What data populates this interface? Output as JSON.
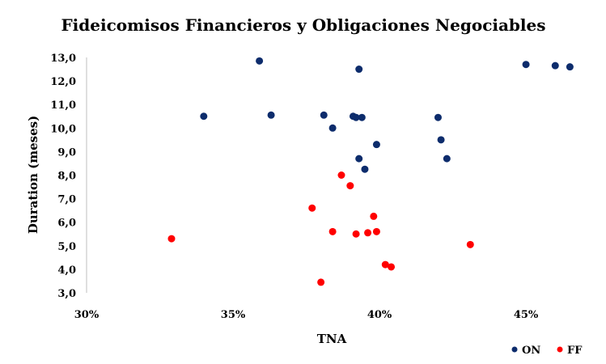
{
  "chart_data": {
    "type": "scatter",
    "title": "Fideicomisos Financieros y Obligaciones Negociables",
    "xlabel": "TNA",
    "ylabel": "Duration (meses)",
    "xlim": [
      0.3,
      0.466
    ],
    "ylim": [
      3.0,
      13.0
    ],
    "x_ticks": [
      {
        "value": 0.3,
        "label": "30%"
      },
      {
        "value": 0.35,
        "label": "35%"
      },
      {
        "value": 0.4,
        "label": "40%"
      },
      {
        "value": 0.45,
        "label": "45%"
      }
    ],
    "y_ticks": [
      {
        "value": 3,
        "label": "3,0"
      },
      {
        "value": 4,
        "label": "4,0"
      },
      {
        "value": 5,
        "label": "5,0"
      },
      {
        "value": 6,
        "label": "6,0"
      },
      {
        "value": 7,
        "label": "7,0"
      },
      {
        "value": 8,
        "label": "8,0"
      },
      {
        "value": 9,
        "label": "9,0"
      },
      {
        "value": 10,
        "label": "10,0"
      },
      {
        "value": 11,
        "label": "11,0"
      },
      {
        "value": 12,
        "label": "12,0"
      },
      {
        "value": 13,
        "label": "13,0"
      }
    ],
    "grid": false,
    "legend_position": "bottom-right",
    "series": [
      {
        "name": "ON",
        "color": "#0d2c6c",
        "points": [
          {
            "x": 0.359,
            "y": 12.85
          },
          {
            "x": 0.393,
            "y": 12.5
          },
          {
            "x": 0.45,
            "y": 12.7
          },
          {
            "x": 0.46,
            "y": 12.65
          },
          {
            "x": 0.465,
            "y": 12.6
          },
          {
            "x": 0.34,
            "y": 10.5
          },
          {
            "x": 0.363,
            "y": 10.55
          },
          {
            "x": 0.381,
            "y": 10.55
          },
          {
            "x": 0.391,
            "y": 10.5
          },
          {
            "x": 0.392,
            "y": 10.45
          },
          {
            "x": 0.394,
            "y": 10.45
          },
          {
            "x": 0.42,
            "y": 10.45
          },
          {
            "x": 0.384,
            "y": 10.0
          },
          {
            "x": 0.421,
            "y": 9.5
          },
          {
            "x": 0.399,
            "y": 9.3
          },
          {
            "x": 0.393,
            "y": 8.7
          },
          {
            "x": 0.423,
            "y": 8.7
          },
          {
            "x": 0.395,
            "y": 8.25
          }
        ]
      },
      {
        "name": "FF",
        "color": "#ff0000",
        "points": [
          {
            "x": 0.387,
            "y": 8.0
          },
          {
            "x": 0.39,
            "y": 7.55
          },
          {
            "x": 0.377,
            "y": 6.6
          },
          {
            "x": 0.398,
            "y": 6.25
          },
          {
            "x": 0.329,
            "y": 5.3
          },
          {
            "x": 0.384,
            "y": 5.6
          },
          {
            "x": 0.392,
            "y": 5.5
          },
          {
            "x": 0.396,
            "y": 5.55
          },
          {
            "x": 0.399,
            "y": 5.6
          },
          {
            "x": 0.431,
            "y": 5.05
          },
          {
            "x": 0.402,
            "y": 4.2
          },
          {
            "x": 0.404,
            "y": 4.1
          },
          {
            "x": 0.38,
            "y": 3.45
          }
        ]
      }
    ]
  }
}
